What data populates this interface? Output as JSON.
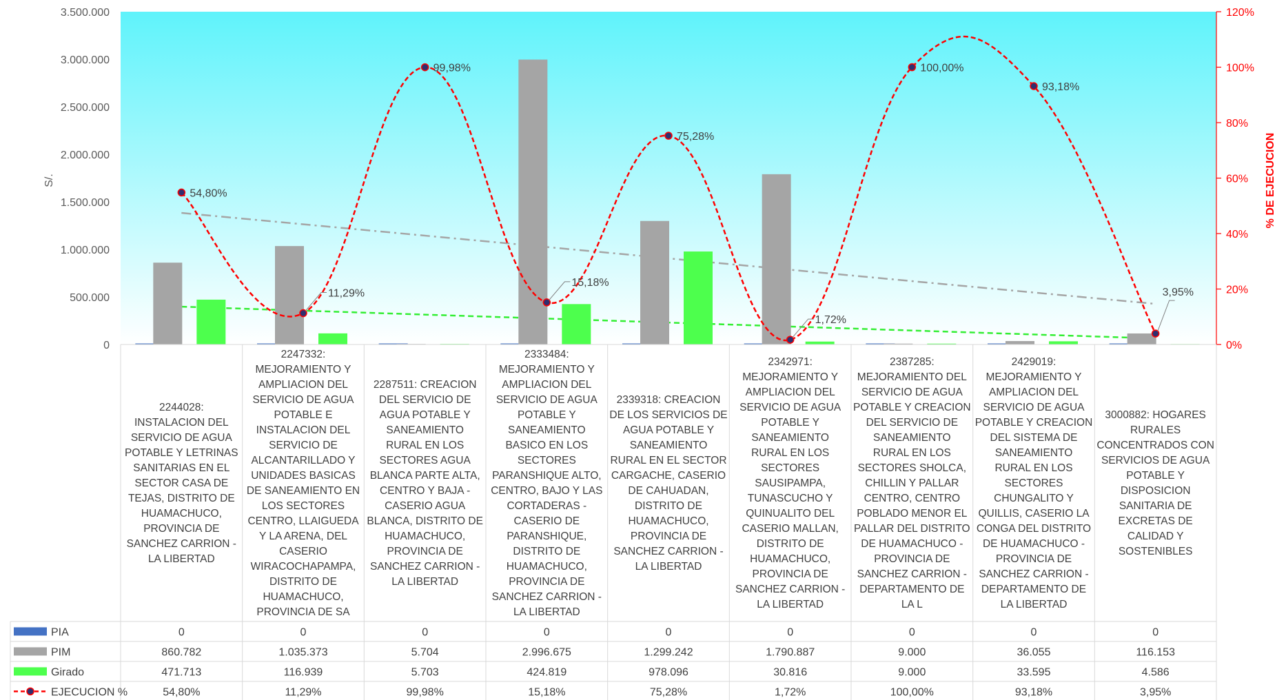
{
  "chart_data": {
    "type": "bar",
    "ylabel": "S/.",
    "y2label": "% DE EJECUCION",
    "ylim": [
      0,
      3500000
    ],
    "y2lim": [
      0,
      120
    ],
    "y_ticks": [
      "0",
      "500.000",
      "1.000.000",
      "1.500.000",
      "2.000.000",
      "2.500.000",
      "3.000.000",
      "3.500.000"
    ],
    "y2_ticks": [
      "0%",
      "20%",
      "40%",
      "60%",
      "80%",
      "100%",
      "120%"
    ],
    "categories": [
      "2244028: INSTALACION DEL SERVICIO DE AGUA POTABLE Y LETRINAS SANITARIAS EN EL SECTOR CASA DE TEJAS, DISTRITO DE HUAMACHUCO, PROVINCIA DE SANCHEZ CARRION - LA LIBERTAD",
      "2247332: MEJORAMIENTO Y AMPLIACION DEL SERVICIO DE AGUA POTABLE E INSTALACION DEL SERVICIO DE ALCANTARILLADO Y UNIDADES BASICAS DE SANEAMIENTO EN LOS SECTORES CENTRO, LLAIGUEDA Y LA ARENA, DEL CASERIO WIRACOCHAPAMPA, DISTRITO DE HUAMACHUCO, PROVINCIA DE SA",
      "2287511: CREACION DEL SERVICIO DE AGUA POTABLE Y SANEAMIENTO RURAL EN LOS SECTORES AGUA BLANCA PARTE ALTA, CENTRO Y BAJA - CASERIO AGUA BLANCA, DISTRITO DE HUAMACHUCO, PROVINCIA DE SANCHEZ CARRION - LA LIBERTAD",
      "2333484: MEJORAMIENTO Y AMPLIACION DEL SERVICIO DE AGUA POTABLE Y SANEAMIENTO BASICO EN LOS SECTORES PARANSHIQUE ALTO, CENTRO, BAJO Y LAS CORTADERAS - CASERIO DE PARANSHIQUE, DISTRITO DE HUAMACHUCO, PROVINCIA DE SANCHEZ CARRION - LA LIBERTAD",
      "2339318: CREACION DE LOS SERVICIOS DE AGUA POTABLE Y SANEAMIENTO RURAL EN EL SECTOR CARGACHE, CASERIO DE CAHUADAN, DISTRITO DE HUAMACHUCO, PROVINCIA DE SANCHEZ CARRION - LA LIBERTAD",
      "2342971: MEJORAMIENTO Y AMPLIACION DEL SERVICIO DE AGUA POTABLE Y SANEAMIENTO RURAL EN LOS SECTORES SAUSIPAMPA, TUNASCUCHO Y QUINUALITO DEL CASERIO MALLAN, DISTRITO DE HUAMACHUCO, PROVINCIA DE SANCHEZ CARRION - LA LIBERTAD",
      "2387285: MEJORAMIENTO DEL SERVICIO DE AGUA POTABLE Y CREACION DEL SERVICIO DE SANEAMIENTO RURAL EN LOS SECTORES SHOLCA, CHILLIN Y PALLAR CENTRO, CENTRO POBLADO MENOR EL PALLAR DEL DISTRITO DE HUAMACHUCO - PROVINCIA DE SANCHEZ CARRION - DEPARTAMENTO DE LA L",
      "2429019: MEJORAMIENTO Y AMPLIACION DEL SERVICIO DE AGUA POTABLE Y CREACION DEL SISTEMA DE SANEAMIENTO RURAL EN LOS SECTORES CHUNGALITO Y QUILLIS, CASERIO LA CONGA DEL DISTRITO DE HUAMACHUCO - PROVINCIA DE SANCHEZ CARRION - DEPARTAMENTO DE LA LIBERTAD",
      "3000882: HOGARES RURALES CONCENTRADOS CON SERVICIOS DE AGUA POTABLE Y DISPOSICION SANITARIA DE EXCRETAS DE CALIDAD Y SOSTENIBLES"
    ],
    "category_lines": [
      [
        "2244028:",
        "INSTALACION DEL",
        "SERVICIO DE AGUA",
        "POTABLE Y LETRINAS",
        "SANITARIAS EN EL",
        "SECTOR CASA DE",
        "TEJAS, DISTRITO DE",
        "HUAMACHUCO,",
        "PROVINCIA DE",
        "SANCHEZ CARRION -",
        "LA LIBERTAD"
      ],
      [
        "2247332:",
        "MEJORAMIENTO Y",
        "AMPLIACION DEL",
        "SERVICIO DE AGUA",
        "POTABLE E",
        "INSTALACION DEL",
        "SERVICIO DE",
        "ALCANTARILLADO Y",
        "UNIDADES BASICAS",
        "DE SANEAMIENTO EN",
        "LOS SECTORES",
        "CENTRO, LLAIGUEDA",
        "Y LA ARENA, DEL",
        "CASERIO",
        "WIRACOCHAPAMPA,",
        "DISTRITO DE",
        "HUAMACHUCO,",
        "PROVINCIA DE SA"
      ],
      [
        "2287511: CREACION",
        "DEL SERVICIO DE",
        "AGUA POTABLE Y",
        "SANEAMIENTO",
        "RURAL EN LOS",
        "SECTORES AGUA",
        "BLANCA PARTE ALTA,",
        "CENTRO Y BAJA -",
        "CASERIO AGUA",
        "BLANCA, DISTRITO DE",
        "HUAMACHUCO,",
        "PROVINCIA DE",
        "SANCHEZ CARRION -",
        "LA LIBERTAD"
      ],
      [
        "2333484:",
        "MEJORAMIENTO Y",
        "AMPLIACION DEL",
        "SERVICIO DE AGUA",
        "POTABLE Y",
        "SANEAMIENTO",
        "BASICO EN LOS",
        "SECTORES",
        "PARANSHIQUE ALTO,",
        "CENTRO, BAJO Y LAS",
        "CORTADERAS -",
        "CASERIO DE",
        "PARANSHIQUE,",
        "DISTRITO DE",
        "HUAMACHUCO,",
        "PROVINCIA DE",
        "SANCHEZ CARRION -",
        "LA LIBERTAD"
      ],
      [
        "2339318: CREACION",
        "DE LOS SERVICIOS DE",
        "AGUA POTABLE Y",
        "SANEAMIENTO",
        "RURAL EN EL SECTOR",
        "CARGACHE, CASERIO",
        "DE CAHUADAN,",
        "DISTRITO DE",
        "HUAMACHUCO,",
        "PROVINCIA DE",
        "SANCHEZ CARRION -",
        "LA LIBERTAD"
      ],
      [
        "2342971:",
        "MEJORAMIENTO Y",
        "AMPLIACION DEL",
        "SERVICIO DE AGUA",
        "POTABLE Y",
        "SANEAMIENTO",
        "RURAL EN LOS",
        "SECTORES",
        "SAUSIPAMPA,",
        "TUNASCUCHO Y",
        "QUINUALITO DEL",
        "CASERIO MALLAN,",
        "DISTRITO DE",
        "HUAMACHUCO,",
        "PROVINCIA DE",
        "SANCHEZ CARRION -",
        "LA LIBERTAD"
      ],
      [
        "2387285:",
        "MEJORAMIENTO DEL",
        "SERVICIO DE AGUA",
        "POTABLE Y CREACION",
        "DEL SERVICIO DE",
        "SANEAMIENTO",
        "RURAL EN LOS",
        "SECTORES SHOLCA,",
        "CHILLIN Y PALLAR",
        "CENTRO, CENTRO",
        "POBLADO MENOR EL",
        "PALLAR DEL DISTRITO",
        "DE HUAMACHUCO -",
        "PROVINCIA DE",
        "SANCHEZ CARRION -",
        "DEPARTAMENTO DE",
        "LA L"
      ],
      [
        "2429019:",
        "MEJORAMIENTO Y",
        "AMPLIACION DEL",
        "SERVICIO DE AGUA",
        "POTABLE Y CREACION",
        "DEL SISTEMA DE",
        "SANEAMIENTO",
        "RURAL EN LOS",
        "SECTORES",
        "CHUNGALITO Y",
        "QUILLIS, CASERIO LA",
        "CONGA DEL DISTRITO",
        "DE HUAMACHUCO -",
        "PROVINCIA DE",
        "SANCHEZ CARRION -",
        "DEPARTAMENTO DE",
        "LA LIBERTAD"
      ],
      [
        "3000882: HOGARES",
        "RURALES",
        "CONCENTRADOS CON",
        "SERVICIOS DE AGUA",
        "POTABLE Y",
        "DISPOSICION",
        "SANITARIA DE",
        "EXCRETAS DE",
        "CALIDAD Y",
        "SOSTENIBLES"
      ]
    ],
    "series": [
      {
        "name": "PIA",
        "kind": "bar",
        "color": "#4472c4",
        "values": [
          0,
          0,
          0,
          0,
          0,
          0,
          0,
          0,
          0
        ],
        "labels": [
          "0",
          "0",
          "0",
          "0",
          "0",
          "0",
          "0",
          "0",
          "0"
        ]
      },
      {
        "name": "PIM",
        "kind": "bar",
        "color": "#a5a5a5",
        "values": [
          860782,
          1035373,
          5704,
          2996675,
          1299242,
          1790887,
          9000,
          36055,
          116153
        ],
        "labels": [
          "860.782",
          "1.035.373",
          "5.704",
          "2.996.675",
          "1.299.242",
          "1.790.887",
          "9.000",
          "36.055",
          "116.153"
        ]
      },
      {
        "name": "Girado",
        "kind": "bar",
        "color": "#4dff4d",
        "values": [
          471713,
          116939,
          5703,
          424819,
          978096,
          30816,
          9000,
          33595,
          4586
        ],
        "labels": [
          "471.713",
          "116.939",
          "5.703",
          "424.819",
          "978.096",
          "30.816",
          "9.000",
          "33.595",
          "4.586"
        ]
      },
      {
        "name": "EJECUCION %",
        "kind": "line",
        "axis": "right",
        "color": "#ff0000",
        "marker_color": "#2f2f6f",
        "values": [
          54.8,
          11.29,
          99.98,
          15.18,
          75.28,
          1.72,
          100.0,
          93.18,
          3.95
        ],
        "labels": [
          "54,80%",
          "11,29%",
          "99,98%",
          "15,18%",
          "75,28%",
          "1,72%",
          "100,00%",
          "93,18%",
          "3,95%"
        ]
      }
    ],
    "trendlines": [
      {
        "of": "PIM",
        "style": "dash-dot",
        "color": "#a5a5a5"
      },
      {
        "of": "Girado",
        "style": "dashed",
        "color": "#33ee33"
      }
    ],
    "grid": false,
    "legend": "table-left",
    "colors": {
      "plot_gradient_top": "#5ff3fb",
      "plot_gradient_bottom": "#ffffff",
      "right_axis": "#ff0000"
    }
  }
}
